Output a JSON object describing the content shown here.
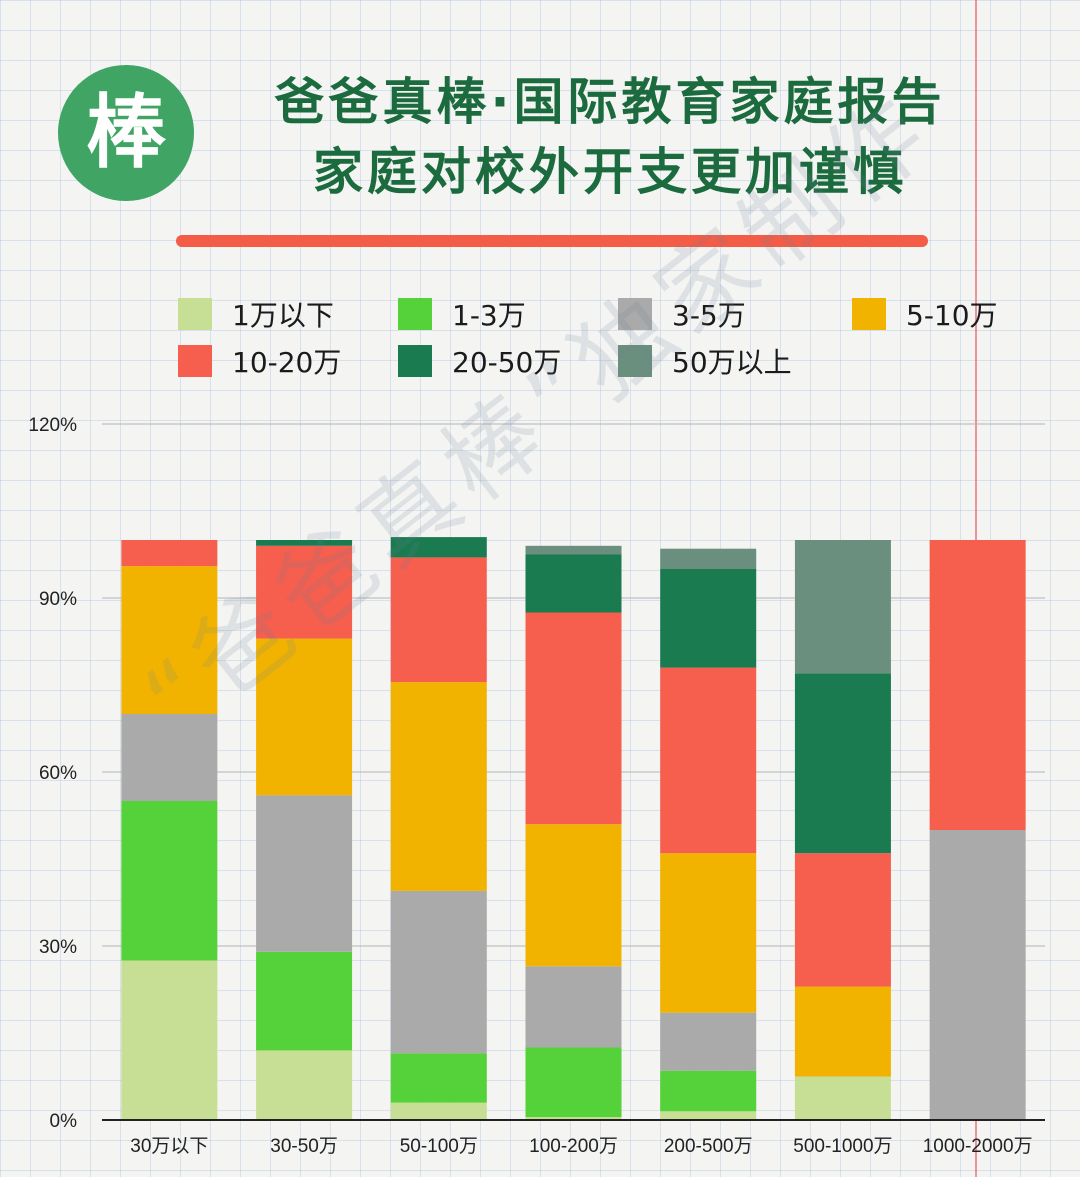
{
  "header": {
    "logo_text": "棒",
    "title_line1": "爸爸真棒·国际教育家庭报告",
    "title_line2": "家庭对校外开支更加谨慎"
  },
  "watermark": "“爸爸真棒”独家制作",
  "colors": {
    "title": "#1c6b3e",
    "underline": "#f35c46",
    "logo_bg": "#3fa464"
  },
  "chart_data": {
    "type": "bar",
    "stacked": true,
    "y_tick_labels": [
      "0%",
      "30%",
      "60%",
      "90%",
      "120%"
    ],
    "ylim": [
      0,
      120
    ],
    "grid": true,
    "legend_position": "top",
    "categories": [
      "30万以下",
      "30-50万",
      "50-100万",
      "100-200万",
      "200-500万",
      "500-1000万",
      "1000-2000万"
    ],
    "series": [
      {
        "name": "1万以下",
        "color": "#c6df95",
        "values": [
          27.5,
          12.0,
          3.0,
          0.5,
          1.5,
          7.5,
          0
        ]
      },
      {
        "name": "1-3万",
        "color": "#55d139",
        "values": [
          27.5,
          17.0,
          8.5,
          12.0,
          7.0,
          0,
          0
        ]
      },
      {
        "name": "3-5万",
        "color": "#aaaaaa",
        "values": [
          15.0,
          27.0,
          28.0,
          14.0,
          10.0,
          0,
          50.0
        ]
      },
      {
        "name": "5-10万",
        "color": "#f1b300",
        "values": [
          25.5,
          27.0,
          36.0,
          24.5,
          27.5,
          15.5,
          0
        ]
      },
      {
        "name": "10-20万",
        "color": "#f65e4e",
        "values": [
          4.5,
          16.0,
          21.5,
          36.5,
          32.0,
          23.0,
          50.0
        ]
      },
      {
        "name": "20-50万",
        "color": "#1a7a50",
        "values": [
          0,
          1.0,
          3.5,
          10.0,
          17.0,
          31.0,
          0
        ]
      },
      {
        "name": "50万以上",
        "color": "#6b8f7e",
        "values": [
          0,
          0,
          0,
          1.5,
          3.5,
          23.0,
          0
        ]
      }
    ]
  }
}
